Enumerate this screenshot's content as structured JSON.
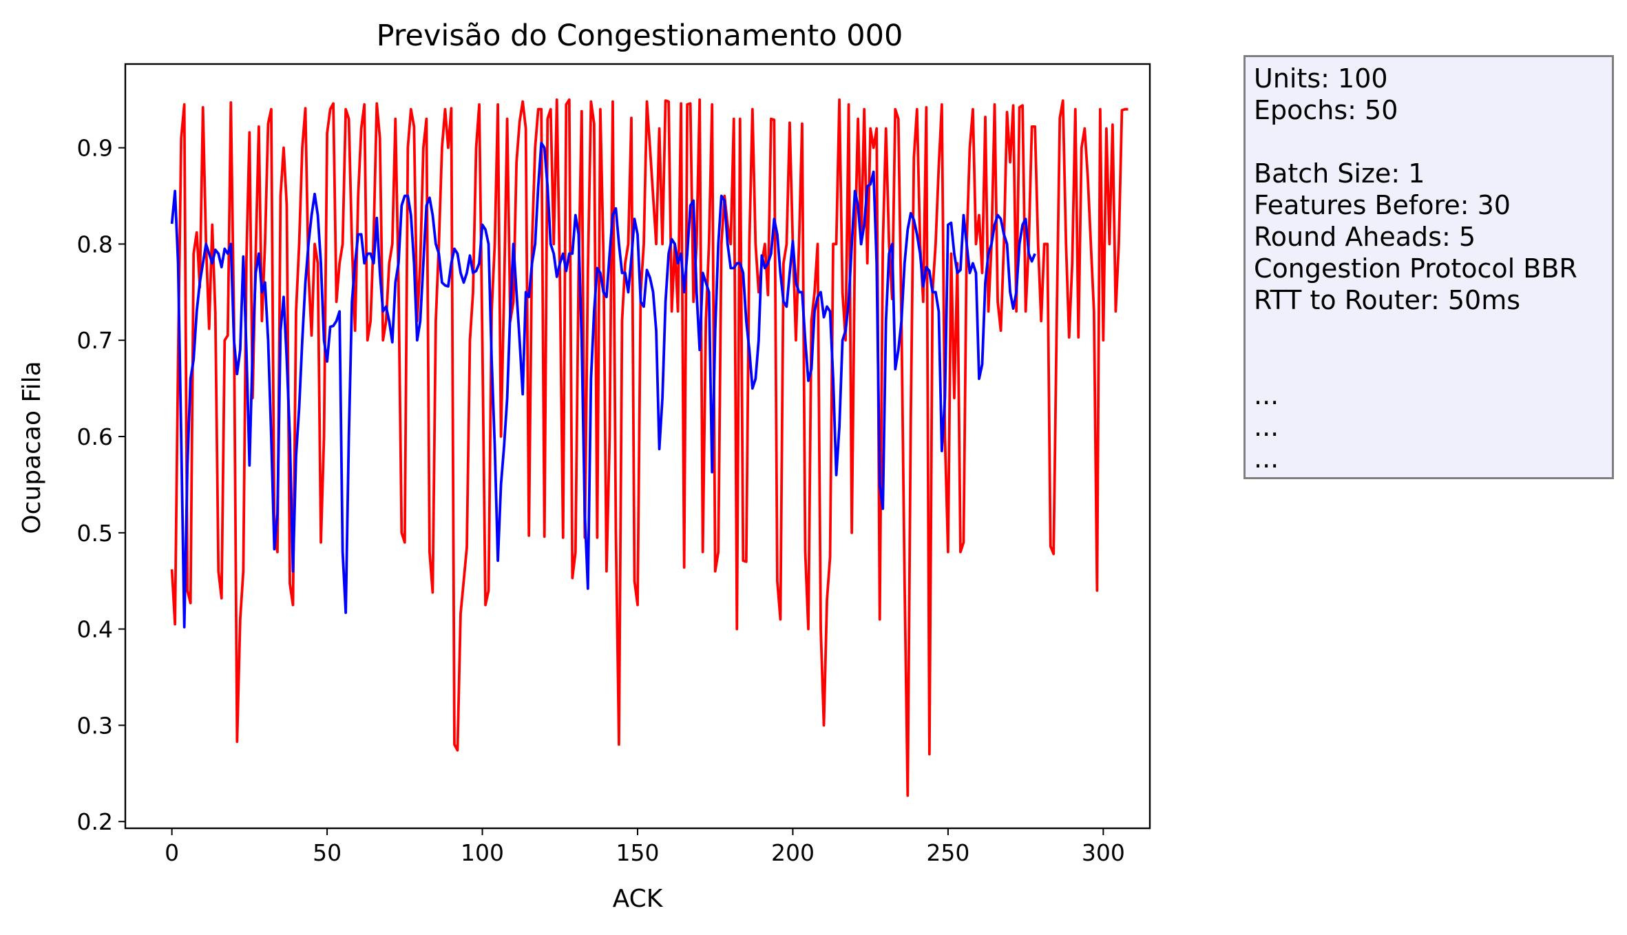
{
  "chart_data": {
    "type": "line",
    "title": "Previsão do Congestionamento 000",
    "xlabel": "ACK",
    "ylabel": "Ocupacao Fila",
    "xlim": [
      -15,
      315
    ],
    "ylim": [
      0.193,
      0.987
    ],
    "x_ticks": [
      "0",
      "50",
      "100",
      "150",
      "200",
      "250",
      "300"
    ],
    "y_ticks": [
      "0.2",
      "0.3",
      "0.4",
      "0.5",
      "0.6",
      "0.7",
      "0.8",
      "0.9"
    ],
    "grid": false,
    "legend": "none",
    "series": [
      {
        "color": "#ff0000",
        "x_start": 0,
        "values": [
          0.462,
          0.405,
          0.68,
          0.91,
          0.945,
          0.44,
          0.427,
          0.79,
          0.812,
          0.755,
          0.942,
          0.8,
          0.712,
          0.82,
          0.728,
          0.46,
          0.432,
          0.7,
          0.705,
          0.947,
          0.72,
          0.283,
          0.41,
          0.46,
          0.782,
          0.916,
          0.64,
          0.79,
          0.922,
          0.72,
          0.8,
          0.925,
          0.94,
          0.5,
          0.48,
          0.85,
          0.9,
          0.84,
          0.447,
          0.425,
          0.73,
          0.8,
          0.9,
          0.941,
          0.77,
          0.705,
          0.8,
          0.78,
          0.49,
          0.6,
          0.915,
          0.94,
          0.946,
          0.74,
          0.78,
          0.8,
          0.94,
          0.93,
          0.8,
          0.71,
          0.85,
          0.92,
          0.945,
          0.7,
          0.72,
          0.81,
          0.946,
          0.91,
          0.7,
          0.72,
          0.78,
          0.8,
          0.93,
          0.76,
          0.5,
          0.49,
          0.9,
          0.94,
          0.922,
          0.72,
          0.78,
          0.9,
          0.93,
          0.48,
          0.438,
          0.72,
          0.8,
          0.9,
          0.94,
          0.9,
          0.941,
          0.28,
          0.274,
          0.416,
          0.45,
          0.485,
          0.7,
          0.75,
          0.9,
          0.945,
          0.7,
          0.425,
          0.44,
          0.73,
          0.8,
          0.945,
          0.6,
          0.75,
          0.93,
          0.72,
          0.74,
          0.885,
          0.927,
          0.948,
          0.92,
          0.497,
          0.8,
          0.9,
          0.94,
          0.94,
          0.496,
          0.93,
          0.94,
          0.8,
          0.95,
          0.76,
          0.495,
          0.945,
          0.95,
          0.453,
          0.48,
          0.77,
          0.938,
          0.495,
          0.772,
          0.948,
          0.925,
          0.495,
          0.94,
          0.79,
          0.46,
          0.6,
          0.948,
          0.502,
          0.28,
          0.72,
          0.78,
          0.8,
          0.931,
          0.45,
          0.425,
          0.75,
          0.8,
          0.948,
          0.9,
          0.85,
          0.8,
          0.92,
          0.8,
          0.949,
          0.948,
          0.73,
          0.8,
          0.73,
          0.946,
          0.464,
          0.945,
          0.946,
          0.74,
          0.8,
          0.95,
          0.48,
          0.72,
          0.8,
          0.945,
          0.46,
          0.48,
          0.8,
          0.85,
          0.82,
          0.8,
          0.93,
          0.4,
          0.93,
          0.471,
          0.47,
          0.8,
          0.94,
          0.8,
          0.75,
          0.78,
          0.8,
          0.747,
          0.93,
          0.929,
          0.45,
          0.41,
          0.78,
          0.8,
          0.926,
          0.8,
          0.7,
          0.8,
          0.925,
          0.48,
          0.4,
          0.72,
          0.75,
          0.8,
          0.4,
          0.3,
          0.43,
          0.475,
          0.8,
          0.8,
          0.95,
          0.75,
          0.7,
          0.945,
          0.5,
          0.8,
          0.93,
          0.8,
          0.94,
          0.78,
          0.92,
          0.9,
          0.92,
          0.41,
          0.8,
          0.92,
          0.8,
          0.743,
          0.94,
          0.93,
          0.72,
          0.45,
          0.227,
          0.62,
          0.89,
          0.94,
          0.8,
          0.74,
          0.942,
          0.27,
          0.75,
          0.8,
          0.88,
          0.945,
          0.6,
          0.48,
          0.79,
          0.64,
          0.78,
          0.48,
          0.49,
          0.8,
          0.9,
          0.94,
          0.8,
          0.83,
          0.77,
          0.932,
          0.73,
          0.8,
          0.945,
          0.74,
          0.71,
          0.8,
          0.937,
          0.885,
          0.944,
          0.73,
          0.942,
          0.944,
          0.73,
          0.8,
          0.922,
          0.922,
          0.8,
          0.72,
          0.8,
          0.8,
          0.486,
          0.478,
          0.72,
          0.931,
          0.949,
          0.8,
          0.703,
          0.78,
          0.94,
          0.703,
          0.9,
          0.92,
          0.87,
          0.8,
          0.73,
          0.44,
          0.94,
          0.7,
          0.92,
          0.8,
          0.924,
          0.73,
          0.8,
          0.939,
          0.94,
          0.94
        ]
      },
      {
        "color": "#0000ff",
        "x_start": 0,
        "values": [
          0.821,
          0.855,
          0.78,
          0.6,
          0.402,
          0.57,
          0.66,
          0.68,
          0.73,
          0.76,
          0.78,
          0.8,
          0.79,
          0.78,
          0.794,
          0.79,
          0.776,
          0.795,
          0.79,
          0.8,
          0.7,
          0.665,
          0.69,
          0.787,
          0.69,
          0.57,
          0.69,
          0.77,
          0.79,
          0.75,
          0.76,
          0.7,
          0.6,
          0.483,
          0.52,
          0.71,
          0.745,
          0.68,
          0.6,
          0.46,
          0.58,
          0.63,
          0.7,
          0.76,
          0.8,
          0.83,
          0.852,
          0.83,
          0.78,
          0.7,
          0.678,
          0.714,
          0.715,
          0.72,
          0.73,
          0.48,
          0.417,
          0.6,
          0.74,
          0.78,
          0.81,
          0.81,
          0.78,
          0.79,
          0.79,
          0.78,
          0.827,
          0.77,
          0.73,
          0.735,
          0.72,
          0.698,
          0.76,
          0.78,
          0.84,
          0.85,
          0.85,
          0.83,
          0.78,
          0.7,
          0.72,
          0.78,
          0.84,
          0.848,
          0.83,
          0.8,
          0.79,
          0.76,
          0.757,
          0.756,
          0.78,
          0.795,
          0.79,
          0.77,
          0.76,
          0.77,
          0.788,
          0.77,
          0.772,
          0.78,
          0.82,
          0.815,
          0.8,
          0.68,
          0.59,
          0.471,
          0.55,
          0.59,
          0.64,
          0.73,
          0.8,
          0.75,
          0.7,
          0.644,
          0.75,
          0.745,
          0.78,
          0.8,
          0.86,
          0.905,
          0.9,
          0.86,
          0.8,
          0.79,
          0.766,
          0.78,
          0.79,
          0.772,
          0.79,
          0.79,
          0.83,
          0.81,
          0.7,
          0.52,
          0.442,
          0.66,
          0.73,
          0.775,
          0.77,
          0.75,
          0.745,
          0.79,
          0.83,
          0.837,
          0.8,
          0.77,
          0.77,
          0.75,
          0.785,
          0.826,
          0.81,
          0.74,
          0.735,
          0.773,
          0.765,
          0.75,
          0.71,
          0.587,
          0.64,
          0.74,
          0.79,
          0.805,
          0.8,
          0.78,
          0.79,
          0.75,
          0.79,
          0.84,
          0.845,
          0.75,
          0.69,
          0.77,
          0.76,
          0.75,
          0.563,
          0.71,
          0.8,
          0.85,
          0.845,
          0.8,
          0.775,
          0.775,
          0.78,
          0.78,
          0.77,
          0.72,
          0.69,
          0.65,
          0.66,
          0.7,
          0.788,
          0.775,
          0.78,
          0.79,
          0.826,
          0.81,
          0.77,
          0.74,
          0.735,
          0.77,
          0.803,
          0.76,
          0.75,
          0.75,
          0.7,
          0.658,
          0.67,
          0.73,
          0.745,
          0.75,
          0.724,
          0.735,
          0.73,
          0.66,
          0.56,
          0.61,
          0.7,
          0.71,
          0.74,
          0.8,
          0.855,
          0.84,
          0.8,
          0.82,
          0.86,
          0.862,
          0.875,
          0.78,
          0.55,
          0.525,
          0.72,
          0.79,
          0.8,
          0.67,
          0.69,
          0.72,
          0.78,
          0.815,
          0.832,
          0.825,
          0.81,
          0.79,
          0.756,
          0.776,
          0.772,
          0.75,
          0.75,
          0.73,
          0.585,
          0.64,
          0.82,
          0.822,
          0.79,
          0.77,
          0.773,
          0.83,
          0.8,
          0.77,
          0.78,
          0.77,
          0.66,
          0.675,
          0.76,
          0.79,
          0.8,
          0.82,
          0.83,
          0.826,
          0.81,
          0.8,
          0.75,
          0.733,
          0.75,
          0.8,
          0.82,
          0.826,
          0.79,
          0.782,
          0.79
        ]
      }
    ]
  },
  "info_box": {
    "lines": [
      "Units: 100",
      "Epochs: 50",
      "",
      "Batch Size: 1",
      "Features Before: 30",
      "Round Aheads: 5",
      "Congestion Protocol BBR",
      "RTT to Router: 50ms",
      "",
      "",
      "...",
      "...",
      "..."
    ]
  }
}
